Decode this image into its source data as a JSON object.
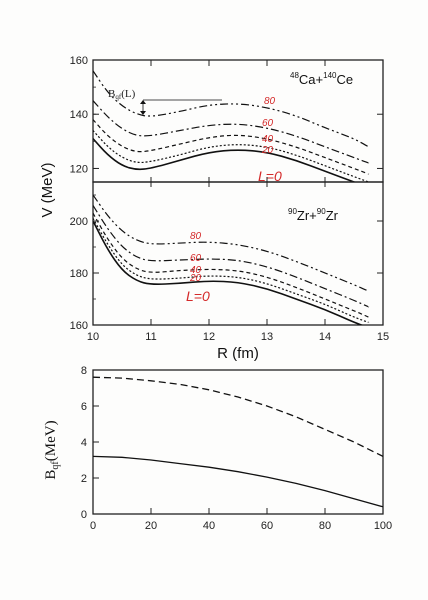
{
  "chart_data": [
    {
      "type": "line",
      "panel": "top",
      "system_label": {
        "a1": "48",
        "el1": "Ca+",
        "a2": "140",
        "el2": "Ce"
      },
      "ylabel": "V (MeV)",
      "xlim": [
        10,
        15
      ],
      "ylim": [
        115,
        160
      ],
      "yticks": [
        "120",
        "140",
        "160"
      ],
      "annotation": "B",
      "annotation_sub": "qf",
      "annotation_suffix": "(L)",
      "series": [
        {
          "name": "L=0",
          "x": [
            10,
            10.25,
            10.5,
            10.75,
            11,
            11.5,
            12,
            12.5,
            13,
            13.5,
            14,
            14.5,
            14.75
          ],
          "values": [
            131,
            125,
            121,
            119.5,
            120,
            123,
            126,
            127,
            126,
            123,
            119,
            115,
            113
          ]
        },
        {
          "name": "20",
          "x": [
            10,
            10.25,
            10.5,
            10.75,
            11,
            11.5,
            12,
            12.5,
            13,
            13.5,
            14,
            14.5,
            14.75
          ],
          "values": [
            134,
            128,
            124,
            122,
            122.5,
            125,
            128,
            129,
            128,
            125,
            121,
            117,
            115
          ]
        },
        {
          "name": "40",
          "x": [
            10,
            10.25,
            10.5,
            10.75,
            11,
            11.5,
            12,
            12.5,
            13,
            13.5,
            14,
            14.5,
            14.75
          ],
          "values": [
            138,
            132,
            128,
            126,
            126.5,
            129,
            131.5,
            132.5,
            131,
            128,
            124,
            120,
            118
          ]
        },
        {
          "name": "60",
          "x": [
            10,
            10.25,
            10.5,
            10.75,
            11,
            11.5,
            12,
            12.5,
            13,
            13.5,
            14,
            14.5,
            14.75
          ],
          "values": [
            145,
            139,
            134.5,
            132,
            132,
            134,
            136,
            136.5,
            135,
            132,
            128,
            124,
            122
          ]
        },
        {
          "name": "80",
          "x": [
            10,
            10.25,
            10.5,
            10.75,
            11,
            11.5,
            12,
            12.5,
            13,
            13.5,
            14,
            14.5,
            14.75
          ],
          "values": [
            156,
            148,
            143,
            140,
            139,
            141,
            143.5,
            144,
            142.5,
            139.5,
            135,
            131,
            128
          ]
        }
      ],
      "curve_labels": [
        "L=0",
        "20",
        "40",
        "60",
        "80"
      ]
    },
    {
      "type": "line",
      "panel": "middle",
      "system_label": {
        "a1": "90",
        "el1": "Zr+",
        "a2": "90",
        "el2": "Zr"
      },
      "xlabel": "R (fm)",
      "xlim": [
        10,
        15
      ],
      "xticks": [
        "10",
        "11",
        "12",
        "13",
        "14",
        "15"
      ],
      "ylim": [
        160,
        215
      ],
      "yticks": [
        "160",
        "180",
        "200"
      ],
      "series": [
        {
          "name": "L=0",
          "x": [
            10,
            10.25,
            10.5,
            10.75,
            11,
            11.5,
            12,
            12.5,
            13,
            13.5,
            14,
            14.5,
            14.75
          ],
          "values": [
            200,
            189,
            181,
            177,
            175.5,
            176,
            177,
            176.5,
            174,
            170,
            166,
            161,
            159
          ]
        },
        {
          "name": "20",
          "x": [
            10,
            10.25,
            10.5,
            10.75,
            11,
            11.5,
            12,
            12.5,
            13,
            13.5,
            14,
            14.5,
            14.75
          ],
          "values": [
            201,
            191,
            183,
            179,
            177.5,
            178,
            179,
            178.5,
            176,
            172,
            168,
            163,
            161
          ]
        },
        {
          "name": "40",
          "x": [
            10,
            10.25,
            10.5,
            10.75,
            11,
            11.5,
            12,
            12.5,
            13,
            13.5,
            14,
            14.5,
            14.75
          ],
          "values": [
            203,
            193,
            185.5,
            181.5,
            180,
            181,
            181.5,
            181,
            178.5,
            174.5,
            170,
            165.5,
            163
          ]
        },
        {
          "name": "60",
          "x": [
            10,
            10.25,
            10.5,
            10.75,
            11,
            11.5,
            12,
            12.5,
            13,
            13.5,
            14,
            14.5,
            14.75
          ],
          "values": [
            206,
            197,
            190,
            186,
            184.5,
            185,
            185.5,
            185,
            182.5,
            178.5,
            174,
            169.5,
            167
          ]
        },
        {
          "name": "80",
          "x": [
            10,
            10.25,
            10.5,
            10.75,
            11,
            11.5,
            12,
            12.5,
            13,
            13.5,
            14,
            14.5,
            14.75
          ],
          "values": [
            210,
            202,
            196,
            192.5,
            191,
            191.5,
            192,
            191,
            188.5,
            184.5,
            180,
            175.5,
            173
          ]
        }
      ],
      "curve_labels": [
        "L=0",
        "20",
        "40",
        "60",
        "80"
      ]
    },
    {
      "type": "line",
      "panel": "bottom",
      "ylabel": "B",
      "ylabel_sub": "qf",
      "ylabel_suffix": "(MeV)",
      "xlim": [
        0,
        100
      ],
      "ylim": [
        0,
        8
      ],
      "xticks": [
        "0",
        "20",
        "40",
        "60",
        "80",
        "100"
      ],
      "yticks": [
        "0",
        "2",
        "4",
        "6",
        "8"
      ],
      "series": [
        {
          "x": [
            0,
            10,
            20,
            30,
            40,
            50,
            60,
            70,
            80,
            90,
            100
          ],
          "values": [
            7.6,
            7.55,
            7.4,
            7.2,
            6.9,
            6.5,
            6.0,
            5.4,
            4.7,
            4.0,
            3.2
          ],
          "style": "dashed"
        },
        {
          "x": [
            0,
            10,
            20,
            30,
            40,
            50,
            60,
            70,
            80,
            90,
            100
          ],
          "values": [
            3.2,
            3.15,
            3.0,
            2.8,
            2.6,
            2.35,
            2.05,
            1.7,
            1.3,
            0.85,
            0.4
          ],
          "style": "solid"
        }
      ]
    }
  ]
}
